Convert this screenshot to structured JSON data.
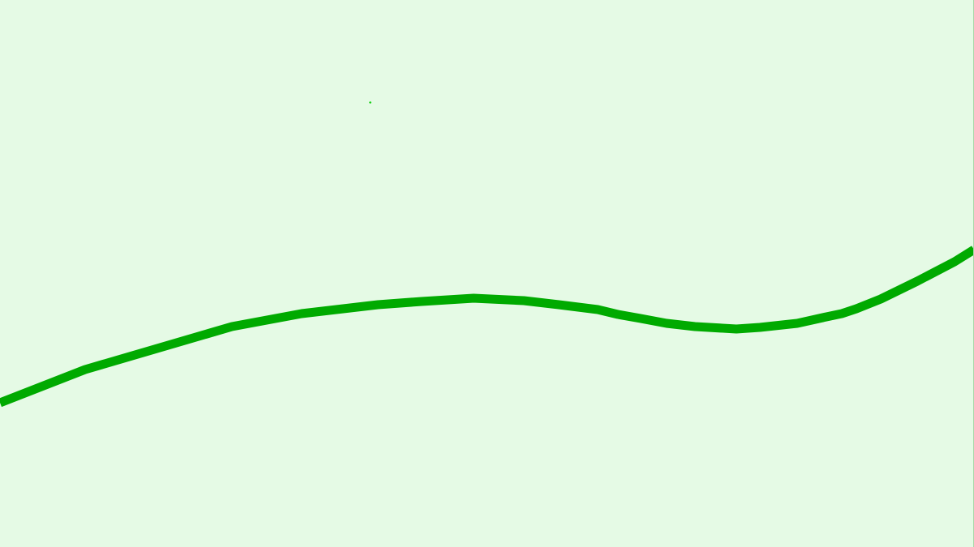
{
  "scene": {
    "background_color": "#e5fae5",
    "track_color": "#00aa00",
    "marker_color": "#00cc00",
    "border_color": "#a8d8a8",
    "elements": [
      "terrain-curve",
      "ball-marker"
    ]
  }
}
